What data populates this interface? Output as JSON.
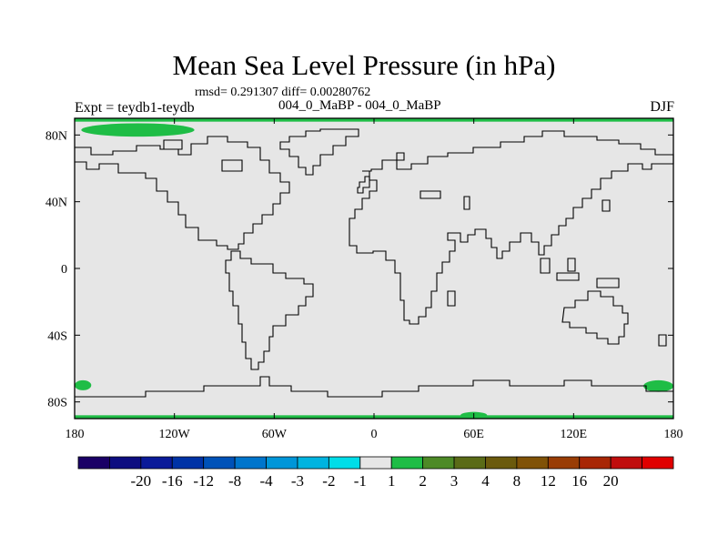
{
  "title": "Mean Sea Level Pressure (in hPa)",
  "stats_line": "rmsd= 0.291307 diff= 0.00280762",
  "left_label": "Expt = teydb1-teydb",
  "center_label": "004_0_MaBP - 004_0_MaBP",
  "right_label": "DJF",
  "chart_data": {
    "type": "heatmap",
    "projection": "cylindrical-equidistant",
    "x_range": [
      -180,
      180
    ],
    "y_range": [
      -90,
      90
    ],
    "x_ticks": [
      {
        "value": -180,
        "label": "180"
      },
      {
        "value": -120,
        "label": "120W"
      },
      {
        "value": -60,
        "label": "60W"
      },
      {
        "value": 0,
        "label": "0"
      },
      {
        "value": 60,
        "label": "60E"
      },
      {
        "value": 120,
        "label": "120E"
      },
      {
        "value": 180,
        "label": "180"
      }
    ],
    "y_ticks": [
      {
        "value": 80,
        "label": "80N"
      },
      {
        "value": 40,
        "label": "40N"
      },
      {
        "value": 0,
        "label": "0"
      },
      {
        "value": -40,
        "label": "40S"
      },
      {
        "value": -80,
        "label": "80S"
      }
    ],
    "background_bin": "-1 to 1",
    "background_color": "#e6e6e6",
    "anomaly_regions": [
      {
        "bin": "1 to 2",
        "color": "#1fbd46",
        "lon": [
          -180,
          180
        ],
        "lat": [
          88,
          90
        ]
      },
      {
        "bin": "1 to 2",
        "color": "#1fbd46",
        "lon": [
          -180,
          180
        ],
        "lat": [
          -90,
          -88
        ]
      },
      {
        "bin": "1 to 2",
        "color": "#1fbd46",
        "lon": [
          -176,
          -108
        ],
        "lat": [
          79,
          87
        ]
      },
      {
        "bin": "1 to 2",
        "color": "#1fbd46",
        "lon": [
          -180,
          -170
        ],
        "lat": [
          -73,
          -67
        ]
      },
      {
        "bin": "1 to 2",
        "color": "#1fbd46",
        "lon": [
          162,
          180
        ],
        "lat": [
          -74,
          -67
        ]
      },
      {
        "bin": "1 to 2",
        "color": "#1fbd46",
        "lon": [
          52,
          68
        ],
        "lat": [
          -90,
          -86
        ]
      }
    ],
    "colorbar": {
      "colors": [
        "#1a0066",
        "#0d0d80",
        "#0a1a99",
        "#0033a6",
        "#0052b8",
        "#0075cc",
        "#0096d9",
        "#00b4e0",
        "#00dde8",
        "#e6e6e6",
        "#1fbd46",
        "#4d8a26",
        "#5a6b17",
        "#6b5a0d",
        "#805207",
        "#993d05",
        "#a82605",
        "#c00d0d",
        "#e00000"
      ],
      "labels": [
        "-20",
        "-16",
        "-12",
        "-8",
        "-4",
        "-3",
        "-2",
        "-1",
        "1",
        "2",
        "3",
        "4",
        "8",
        "12",
        "16",
        "20"
      ]
    }
  }
}
